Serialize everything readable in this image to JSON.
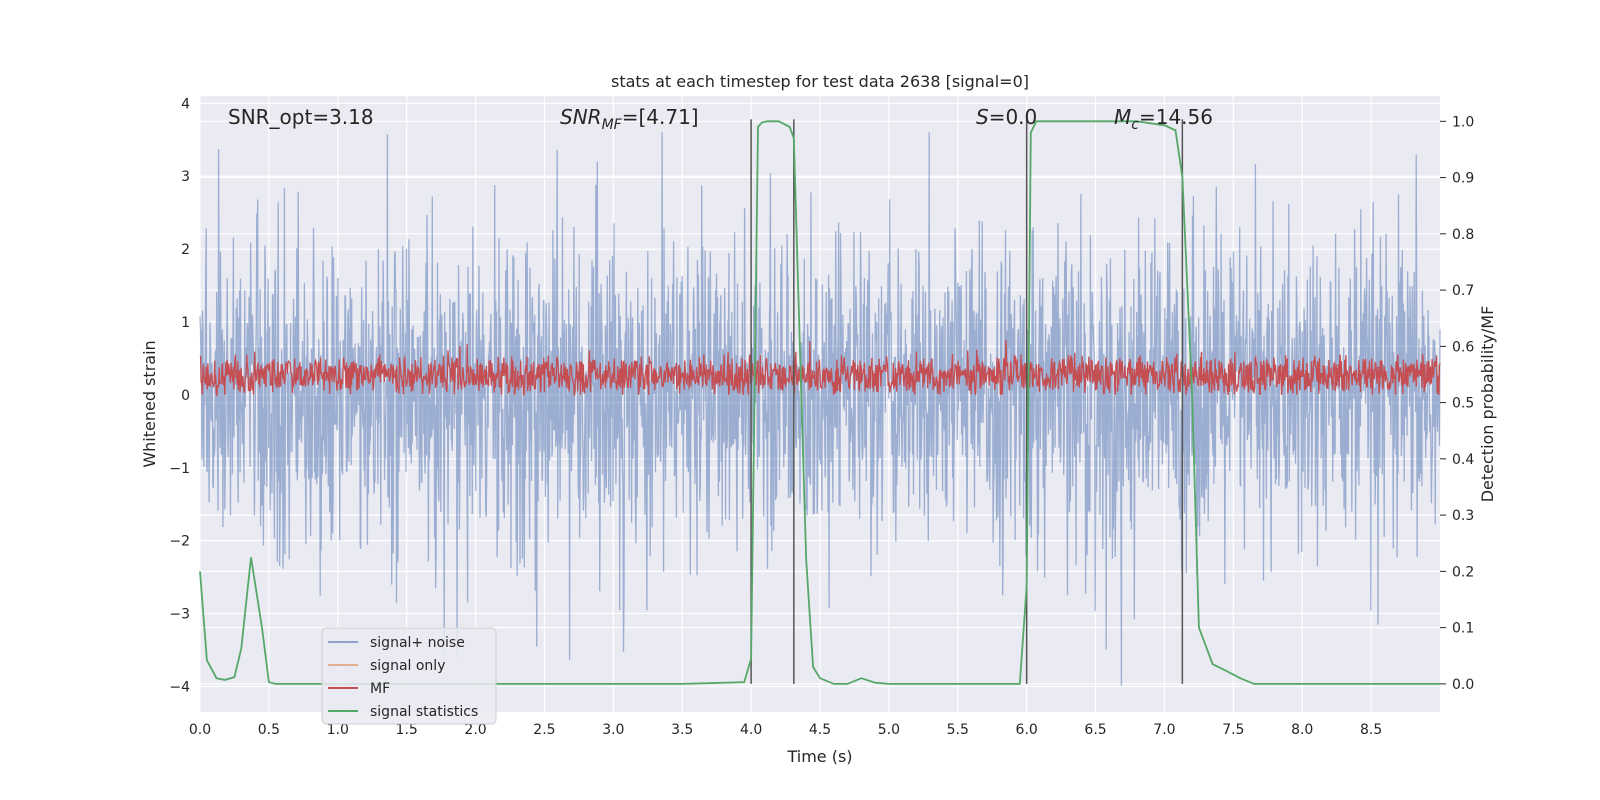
{
  "chart_data": {
    "type": "line",
    "title": "stats at each timestep for test data 2638 [signal=0]",
    "xlabel": "Time (s)",
    "ylabel_left": "Whitened strain",
    "ylabel_right": "Detection probability/MF",
    "xlim": [
      0.0,
      9.0
    ],
    "ylim_left": [
      -4.35,
      4.1
    ],
    "ylim_right": [
      -0.05,
      1.045
    ],
    "x_ticks": [
      0.0,
      0.5,
      1.0,
      1.5,
      2.0,
      2.5,
      3.0,
      3.5,
      4.0,
      4.5,
      5.0,
      5.5,
      6.0,
      6.5,
      7.0,
      7.5,
      8.0,
      8.5
    ],
    "x_tick_labels": [
      "0.0",
      "0.5",
      "1.0",
      "1.5",
      "2.0",
      "2.5",
      "3.0",
      "3.5",
      "4.0",
      "4.5",
      "5.0",
      "5.5",
      "6.0",
      "6.5",
      "7.0",
      "7.5",
      "8.0",
      "8.5"
    ],
    "y_left_ticks": [
      -4,
      -3,
      -2,
      -1,
      0,
      1,
      2,
      3,
      4
    ],
    "y_left_tick_labels": [
      "−4",
      "−3",
      "−2",
      "−1",
      "0",
      "1",
      "2",
      "3",
      "4"
    ],
    "y_right_ticks": [
      0.0,
      0.1,
      0.2,
      0.3,
      0.4,
      0.5,
      0.6,
      0.7,
      0.8,
      0.9,
      1.0
    ],
    "y_right_tick_labels": [
      "0.0",
      "0.1",
      "0.2",
      "0.3",
      "0.4",
      "0.5",
      "0.6",
      "0.7",
      "0.8",
      "0.9",
      "1.0"
    ],
    "grid": true,
    "legend_position": "lower-left",
    "annotations": [
      {
        "id": "snr-opt",
        "text": "SNR_opt=3.18"
      },
      {
        "id": "snr-mf",
        "text": "SNR",
        "sub": "MF",
        "rest": "=[4.71]",
        "italic": true
      },
      {
        "id": "s-val",
        "text": "S",
        "sub": "",
        "rest": "=0.0",
        "italic": true
      },
      {
        "id": "mc-val",
        "text": "M",
        "sub": "c",
        "rest": "=14.56",
        "italic": true
      }
    ],
    "vertical_lines": [
      4.0,
      4.31,
      6.0,
      7.13
    ],
    "series": [
      {
        "name": "signal+ noise",
        "color": "#4c72b0",
        "axis": "left",
        "style": "noise",
        "approx_range": [
          -4.0,
          3.6
        ]
      },
      {
        "name": "signal only",
        "color": "#dd8452",
        "axis": "left",
        "style": "flat",
        "values": []
      },
      {
        "name": "MF",
        "color": "#c44e52",
        "axis": "left",
        "style": "mf",
        "approx_range": [
          0.0,
          1.0
        ]
      },
      {
        "name": "signal statistics",
        "color": "#55a868",
        "axis": "right",
        "x": [
          0.0,
          0.05,
          0.12,
          0.18,
          0.25,
          0.3,
          0.37,
          0.45,
          0.5,
          0.55,
          1.0,
          2.0,
          3.0,
          3.5,
          3.95,
          4.0,
          4.05,
          4.08,
          4.12,
          4.2,
          4.28,
          4.31,
          4.36,
          4.4,
          4.45,
          4.5,
          4.6,
          4.7,
          4.8,
          4.9,
          5.0,
          5.5,
          5.95,
          6.0,
          6.03,
          6.07,
          6.1,
          6.5,
          6.8,
          7.0,
          7.08,
          7.13,
          7.2,
          7.25,
          7.35,
          7.45,
          7.55,
          7.65,
          8.0,
          8.5,
          9.0
        ],
        "y": [
          0.2,
          0.042,
          0.01,
          0.007,
          0.012,
          0.063,
          0.225,
          0.1,
          0.003,
          0.0,
          0.0,
          0.0,
          0.0,
          0.0,
          0.003,
          0.045,
          0.99,
          0.998,
          1.0,
          1.0,
          0.99,
          0.97,
          0.55,
          0.22,
          0.03,
          0.01,
          0.0,
          0.0,
          0.01,
          0.002,
          0.0,
          0.0,
          0.0,
          0.175,
          0.98,
          1.0,
          1.0,
          1.0,
          1.0,
          0.993,
          0.984,
          0.9,
          0.52,
          0.1,
          0.035,
          0.023,
          0.01,
          0.0,
          0.0,
          0.0,
          0.0
        ]
      }
    ]
  }
}
